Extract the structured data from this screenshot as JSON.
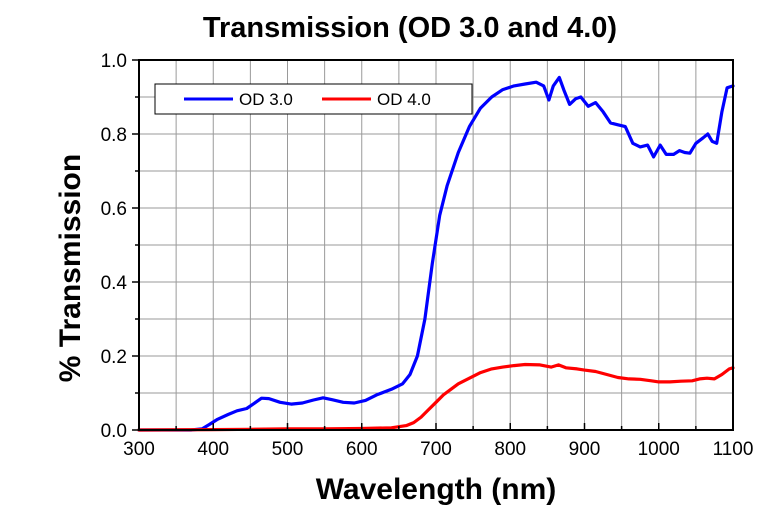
{
  "chart_data": {
    "type": "line",
    "title": "Transmission (OD 3.0 and 4.0)",
    "xlabel": "Wavelength (nm)",
    "ylabel": "% Transmission",
    "xlim": [
      300,
      1100
    ],
    "ylim": [
      0.0,
      1.0
    ],
    "grid": true,
    "legend_position": "top-left",
    "x_ticks": [
      300,
      400,
      500,
      600,
      700,
      800,
      900,
      1000,
      1100
    ],
    "x_tick_labels": [
      "300",
      "400",
      "500",
      "600",
      "700",
      "800",
      "900",
      "1000",
      "1100"
    ],
    "y_ticks": [
      0.0,
      0.2,
      0.4,
      0.6,
      0.8,
      1.0
    ],
    "y_tick_labels": [
      "0.0",
      "0.2",
      "0.4",
      "0.6",
      "0.8",
      "1.0"
    ],
    "series": [
      {
        "name": "OD 3.0",
        "color": "#0000ff",
        "points": [
          [
            300,
            0.0
          ],
          [
            370,
            0.0
          ],
          [
            385,
            0.003
          ],
          [
            395,
            0.015
          ],
          [
            405,
            0.028
          ],
          [
            420,
            0.042
          ],
          [
            432,
            0.052
          ],
          [
            445,
            0.058
          ],
          [
            455,
            0.072
          ],
          [
            465,
            0.086
          ],
          [
            475,
            0.085
          ],
          [
            490,
            0.075
          ],
          [
            505,
            0.07
          ],
          [
            520,
            0.073
          ],
          [
            535,
            0.081
          ],
          [
            548,
            0.087
          ],
          [
            560,
            0.082
          ],
          [
            575,
            0.075
          ],
          [
            590,
            0.073
          ],
          [
            605,
            0.08
          ],
          [
            620,
            0.095
          ],
          [
            640,
            0.11
          ],
          [
            655,
            0.125
          ],
          [
            665,
            0.15
          ],
          [
            675,
            0.2
          ],
          [
            685,
            0.3
          ],
          [
            695,
            0.45
          ],
          [
            705,
            0.58
          ],
          [
            715,
            0.66
          ],
          [
            730,
            0.75
          ],
          [
            745,
            0.82
          ],
          [
            760,
            0.87
          ],
          [
            775,
            0.9
          ],
          [
            790,
            0.92
          ],
          [
            805,
            0.93
          ],
          [
            820,
            0.935
          ],
          [
            835,
            0.94
          ],
          [
            845,
            0.93
          ],
          [
            852,
            0.892
          ],
          [
            858,
            0.93
          ],
          [
            866,
            0.953
          ],
          [
            872,
            0.92
          ],
          [
            880,
            0.88
          ],
          [
            888,
            0.895
          ],
          [
            895,
            0.9
          ],
          [
            905,
            0.875
          ],
          [
            915,
            0.885
          ],
          [
            925,
            0.86
          ],
          [
            935,
            0.83
          ],
          [
            945,
            0.825
          ],
          [
            955,
            0.82
          ],
          [
            965,
            0.775
          ],
          [
            975,
            0.765
          ],
          [
            985,
            0.77
          ],
          [
            993,
            0.738
          ],
          [
            1002,
            0.77
          ],
          [
            1010,
            0.745
          ],
          [
            1020,
            0.745
          ],
          [
            1028,
            0.755
          ],
          [
            1035,
            0.75
          ],
          [
            1042,
            0.748
          ],
          [
            1050,
            0.775
          ],
          [
            1060,
            0.79
          ],
          [
            1066,
            0.8
          ],
          [
            1072,
            0.78
          ],
          [
            1078,
            0.775
          ],
          [
            1085,
            0.86
          ],
          [
            1092,
            0.925
          ],
          [
            1100,
            0.93
          ]
        ]
      },
      {
        "name": "OD 4.0",
        "color": "#ff0000",
        "points": [
          [
            300,
            0.0
          ],
          [
            400,
            0.001
          ],
          [
            450,
            0.002
          ],
          [
            500,
            0.003
          ],
          [
            550,
            0.003
          ],
          [
            600,
            0.004
          ],
          [
            640,
            0.006
          ],
          [
            660,
            0.012
          ],
          [
            670,
            0.02
          ],
          [
            680,
            0.035
          ],
          [
            690,
            0.055
          ],
          [
            700,
            0.075
          ],
          [
            710,
            0.095
          ],
          [
            720,
            0.11
          ],
          [
            730,
            0.125
          ],
          [
            745,
            0.14
          ],
          [
            760,
            0.155
          ],
          [
            775,
            0.165
          ],
          [
            790,
            0.17
          ],
          [
            805,
            0.174
          ],
          [
            820,
            0.177
          ],
          [
            840,
            0.176
          ],
          [
            855,
            0.17
          ],
          [
            865,
            0.176
          ],
          [
            875,
            0.168
          ],
          [
            890,
            0.165
          ],
          [
            900,
            0.162
          ],
          [
            915,
            0.158
          ],
          [
            930,
            0.15
          ],
          [
            945,
            0.142
          ],
          [
            960,
            0.138
          ],
          [
            975,
            0.137
          ],
          [
            990,
            0.133
          ],
          [
            1000,
            0.13
          ],
          [
            1015,
            0.13
          ],
          [
            1030,
            0.132
          ],
          [
            1045,
            0.133
          ],
          [
            1055,
            0.138
          ],
          [
            1065,
            0.14
          ],
          [
            1075,
            0.138
          ],
          [
            1085,
            0.15
          ],
          [
            1095,
            0.165
          ],
          [
            1100,
            0.168
          ]
        ]
      }
    ]
  }
}
